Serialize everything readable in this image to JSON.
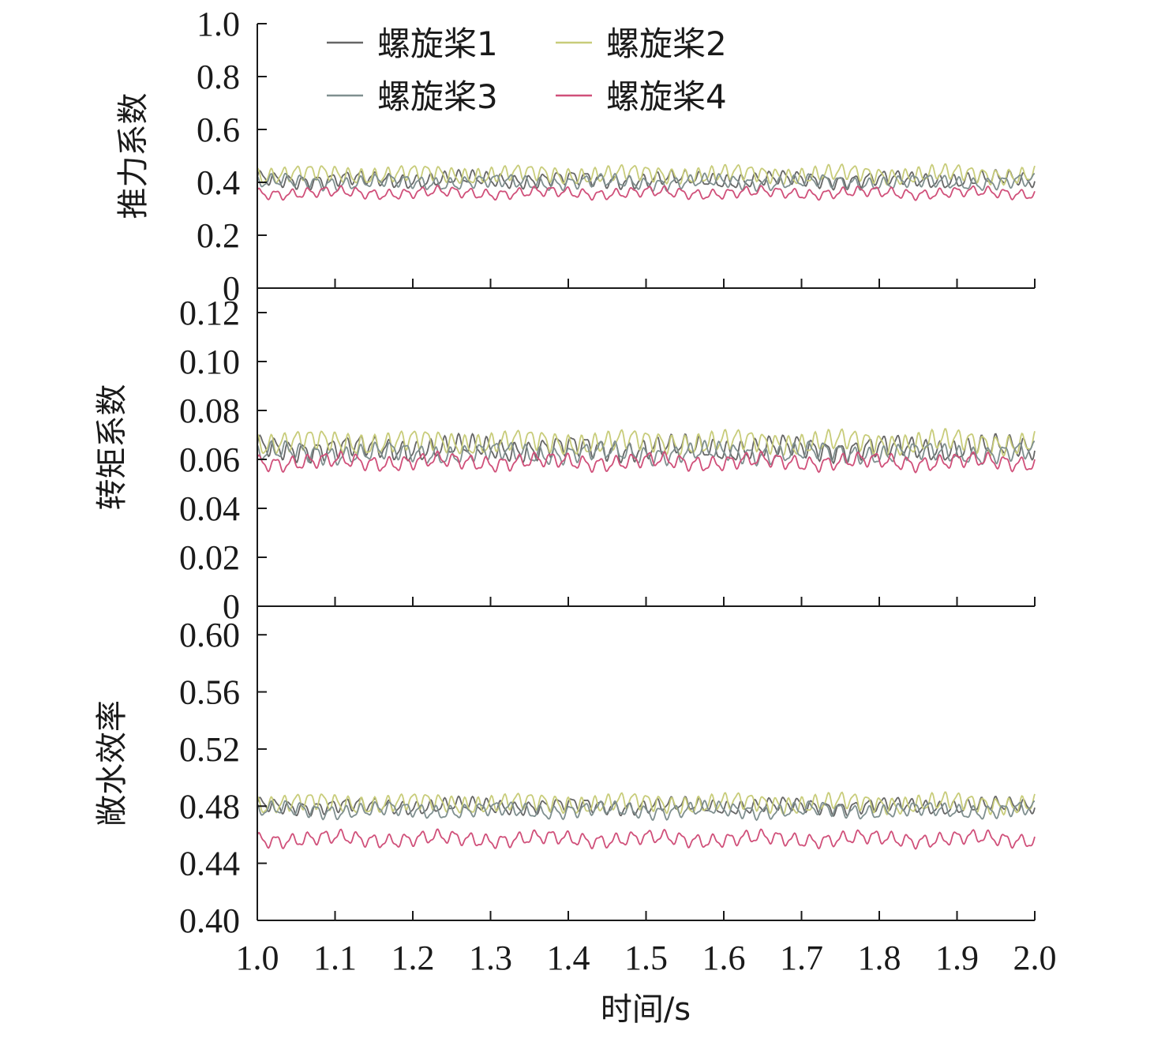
{
  "chart_data": {
    "type": "line",
    "xlabel": "时间/s",
    "x_ticks": [
      "1.0",
      "1.1",
      "1.2",
      "1.3",
      "1.4",
      "1.5",
      "1.6",
      "1.7",
      "1.8",
      "1.9",
      "2.0"
    ],
    "xlim": [
      1.0,
      2.0
    ],
    "legend_position": "top-center",
    "legend": [
      {
        "label": "螺旋桨1",
        "color": "#666666"
      },
      {
        "label": "螺旋桨2",
        "color": "#c8cc7a"
      },
      {
        "label": "螺旋桨3",
        "color": "#7f8f8f"
      },
      {
        "label": "螺旋桨4",
        "color": "#d0507a"
      }
    ],
    "panels": [
      {
        "ylabel": "推力系数",
        "ylim": [
          0,
          1.0
        ],
        "y_ticks": [
          "0",
          "0.2",
          "0.4",
          "0.6",
          "0.8",
          "1.0"
        ],
        "y_tick_values": [
          0,
          0.2,
          0.4,
          0.6,
          0.8,
          1.0
        ],
        "series": [
          {
            "label": "螺旋桨1",
            "mean": 0.41,
            "amp": 0.022,
            "freq": 55,
            "phase": 0.0
          },
          {
            "label": "螺旋桨2",
            "mean": 0.43,
            "amp": 0.025,
            "freq": 60,
            "phase": 1.3
          },
          {
            "label": "螺旋桨3",
            "mean": 0.4,
            "amp": 0.02,
            "freq": 52,
            "phase": 2.1
          },
          {
            "label": "螺旋桨4",
            "mean": 0.36,
            "amp": 0.016,
            "freq": 48,
            "phase": 0.7
          }
        ]
      },
      {
        "ylabel": "转矩系数",
        "ylim": [
          0,
          0.13
        ],
        "y_ticks": [
          "0",
          "0.02",
          "0.04",
          "0.06",
          "0.08",
          "0.10",
          "0.12"
        ],
        "y_tick_values": [
          0,
          0.02,
          0.04,
          0.06,
          0.08,
          0.1,
          0.12
        ],
        "series": [
          {
            "label": "螺旋桨1",
            "mean": 0.0645,
            "amp": 0.0035,
            "freq": 55,
            "phase": 0.0
          },
          {
            "label": "螺旋桨2",
            "mean": 0.067,
            "amp": 0.0035,
            "freq": 60,
            "phase": 1.3
          },
          {
            "label": "螺旋桨3",
            "mean": 0.0625,
            "amp": 0.003,
            "freq": 52,
            "phase": 2.1
          },
          {
            "label": "螺旋桨4",
            "mean": 0.059,
            "amp": 0.0025,
            "freq": 48,
            "phase": 0.7
          }
        ]
      },
      {
        "ylabel": "敞水效率",
        "ylim": [
          0.4,
          0.62
        ],
        "y_ticks": [
          "0.40",
          "0.44",
          "0.48",
          "0.52",
          "0.56",
          "0.60"
        ],
        "y_tick_values": [
          0.4,
          0.44,
          0.48,
          0.52,
          0.56,
          0.6
        ],
        "series": [
          {
            "label": "螺旋桨1",
            "mean": 0.48,
            "amp": 0.004,
            "freq": 55,
            "phase": 0.0
          },
          {
            "label": "螺旋桨2",
            "mean": 0.482,
            "amp": 0.005,
            "freq": 60,
            "phase": 1.3
          },
          {
            "label": "螺旋桨3",
            "mean": 0.477,
            "amp": 0.004,
            "freq": 52,
            "phase": 2.1
          },
          {
            "label": "螺旋桨4",
            "mean": 0.457,
            "amp": 0.004,
            "freq": 48,
            "phase": 0.7
          }
        ]
      }
    ]
  }
}
